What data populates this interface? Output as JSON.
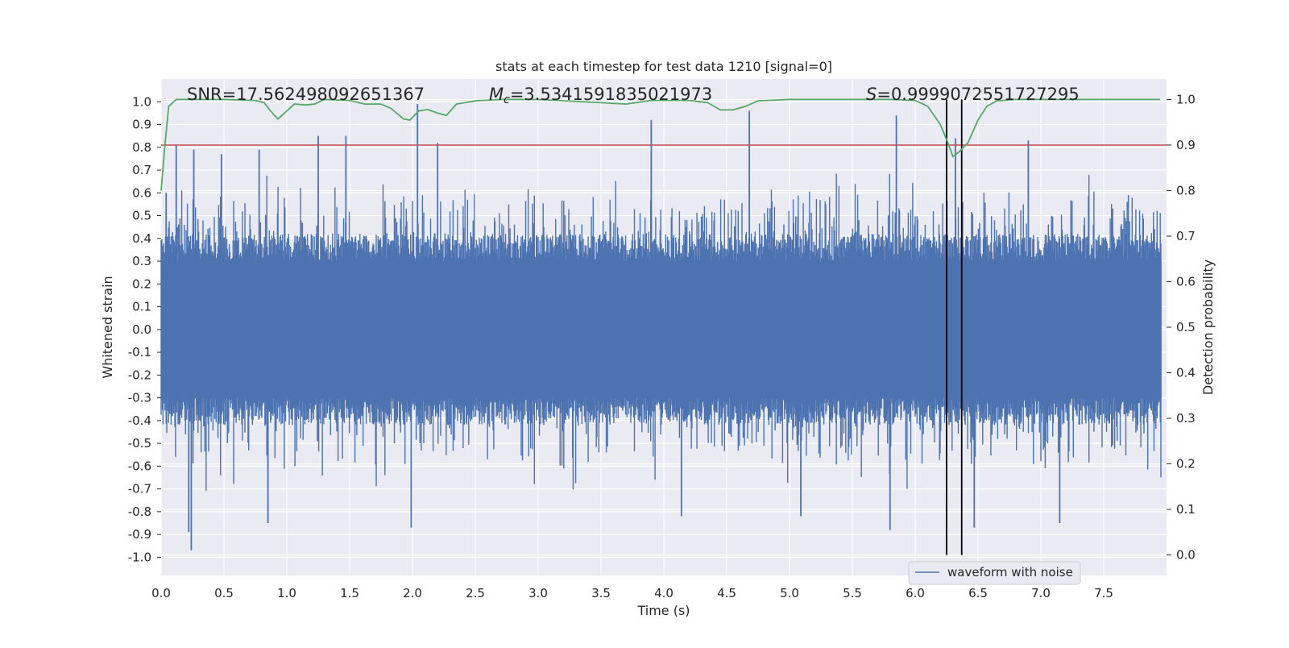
{
  "chart_data": {
    "type": "line",
    "title": "stats at each timestep for test data 1210 [signal=0]",
    "xlabel": "Time (s)",
    "ylabel": "Whitened strain",
    "y2label": "Detection probability",
    "xlim": [
      0.0,
      8.0
    ],
    "ylim": [
      -1.08,
      1.1
    ],
    "y2lim": [
      -0.045,
      1.045
    ],
    "x_ticks": [
      "0.0",
      "0.5",
      "1.0",
      "1.5",
      "2.0",
      "2.5",
      "3.0",
      "3.5",
      "4.0",
      "4.5",
      "5.0",
      "5.5",
      "6.0",
      "6.5",
      "7.0",
      "7.5"
    ],
    "y_ticks": [
      "1.0",
      "0.9",
      "0.8",
      "0.7",
      "0.6",
      "0.5",
      "0.4",
      "0.3",
      "0.2",
      "0.1",
      "0.0",
      "-0.1",
      "-0.2",
      "-0.3",
      "-0.4",
      "-0.5",
      "-0.6",
      "-0.7",
      "-0.8",
      "-0.9",
      "-1.0"
    ],
    "y2_ticks": [
      "1.0",
      "0.9",
      "0.8",
      "0.7",
      "0.6",
      "0.5",
      "0.4",
      "0.3",
      "0.2",
      "0.1",
      "0.0"
    ],
    "grid": true,
    "annotations": {
      "snr": "SNR=17.562498092651367",
      "mc": "=3.5341591835021973",
      "mc_symbol": "M",
      "mc_sub": "c",
      "s": "=0.9999072551727295",
      "s_symbol": "S"
    },
    "threshold_line": {
      "value": 0.9,
      "axis": "right",
      "color": "#c44e52"
    },
    "vertical_lines": [
      6.25,
      6.37
    ],
    "series": [
      {
        "name": "waveform with noise",
        "axis": "left",
        "color": "#4c72b0",
        "sample_rate": 2048,
        "duration": 8.0,
        "notable_peaks": [
          {
            "x": 0.04,
            "y": 0.6
          },
          {
            "x": 0.12,
            "y": 0.81
          },
          {
            "x": 0.26,
            "y": 0.79
          },
          {
            "x": 0.48,
            "y": 0.77
          },
          {
            "x": 0.78,
            "y": 0.79
          },
          {
            "x": 1.25,
            "y": 0.85
          },
          {
            "x": 1.47,
            "y": 0.85
          },
          {
            "x": 2.04,
            "y": 0.99
          },
          {
            "x": 2.2,
            "y": 0.82
          },
          {
            "x": 3.9,
            "y": 0.92
          },
          {
            "x": 4.68,
            "y": 0.96
          },
          {
            "x": 5.85,
            "y": 0.94
          },
          {
            "x": 6.32,
            "y": 0.84
          },
          {
            "x": 6.9,
            "y": 0.83
          }
        ],
        "notable_troughs": [
          {
            "x": 0.24,
            "y": -0.97
          },
          {
            "x": 0.22,
            "y": -0.89
          },
          {
            "x": 0.85,
            "y": -0.85
          },
          {
            "x": 1.99,
            "y": -0.87
          },
          {
            "x": 4.14,
            "y": -0.82
          },
          {
            "x": 5.09,
            "y": -0.82
          },
          {
            "x": 5.8,
            "y": -0.88
          },
          {
            "x": 6.47,
            "y": -0.87
          },
          {
            "x": 7.15,
            "y": -0.85
          }
        ]
      },
      {
        "name": "detection probability",
        "axis": "right",
        "color": "#55a868",
        "x": [
          0.0,
          0.03,
          0.06,
          0.12,
          0.5,
          0.75,
          0.82,
          0.87,
          0.93,
          1.0,
          1.06,
          1.15,
          1.22,
          1.3,
          1.5,
          1.62,
          1.75,
          1.83,
          1.93,
          1.98,
          2.05,
          2.12,
          2.2,
          2.27,
          2.35,
          2.5,
          2.7,
          3.0,
          3.5,
          3.7,
          3.9,
          4.2,
          4.35,
          4.45,
          4.55,
          4.65,
          4.75,
          5.0,
          5.8,
          6.0,
          6.1,
          6.2,
          6.26,
          6.3,
          6.35,
          6.42,
          6.5,
          6.57,
          6.65,
          6.8,
          7.0,
          7.5,
          7.95
        ],
        "y": [
          0.8,
          0.9,
          0.985,
          1.0,
          1.0,
          0.998,
          0.993,
          0.975,
          0.957,
          0.975,
          0.99,
          0.988,
          0.99,
          1.0,
          0.998,
          0.99,
          0.99,
          0.98,
          0.957,
          0.955,
          0.975,
          0.978,
          0.97,
          0.965,
          0.99,
          0.997,
          1.0,
          1.0,
          0.993,
          0.99,
          0.998,
          0.998,
          0.993,
          0.977,
          0.977,
          0.985,
          0.997,
          1.0,
          1.0,
          0.998,
          0.985,
          0.945,
          0.905,
          0.875,
          0.885,
          0.905,
          0.955,
          0.985,
          0.997,
          1.0,
          1.0,
          1.0,
          1.0
        ]
      }
    ],
    "legend": {
      "entries": [
        "waveform with noise"
      ],
      "placement": "lower-right"
    }
  }
}
